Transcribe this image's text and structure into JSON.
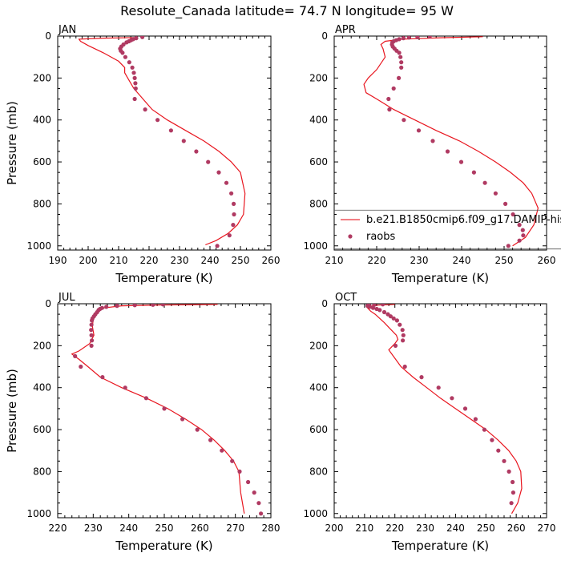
{
  "title": "Resolute_Canada  latitude= 74.7 N longitude= 95 W",
  "colors": {
    "model": "#e8161f",
    "obs": "#b03a62"
  },
  "legend": {
    "panel": 1,
    "placement": "lower-right",
    "entries": [
      "b.e21.B1850cmip6.f09_g17.DAMIP-hist-c",
      "raobs"
    ]
  },
  "chart_data": [
    {
      "type": "line",
      "title": "JAN",
      "xlabel": "Temperature (K)",
      "ylabel": "Pressure (mb)",
      "xlim": [
        190,
        260
      ],
      "ylim": [
        1020,
        0
      ],
      "xticks": [
        190,
        200,
        210,
        220,
        230,
        240,
        250,
        260
      ],
      "yticks": [
        0,
        200,
        400,
        600,
        800,
        1000
      ],
      "series": [
        {
          "name": "model",
          "kind": "line",
          "x": [
            216,
            205,
            197,
            197.5,
            200,
            205,
            210,
            212,
            212,
            213,
            215,
            218,
            221,
            226,
            232,
            238,
            243,
            247,
            250,
            251.5,
            251,
            249,
            246,
            242,
            238.5
          ],
          "y": [
            7,
            10,
            15,
            25,
            45,
            80,
            120,
            150,
            175,
            200,
            250,
            300,
            350,
            400,
            450,
            500,
            550,
            600,
            650,
            750,
            850,
            900,
            940,
            975,
            995
          ]
        },
        {
          "name": "raobs",
          "kind": "scatter",
          "x": [
            217.8,
            215.8,
            214.8,
            214.1,
            213.4,
            212.6,
            211.6,
            210.9,
            210.5,
            210.7,
            211.3,
            212.2,
            213.5,
            214.5,
            215.0,
            215.3,
            215.5,
            215.6,
            215.3,
            218.7,
            222.8,
            227.2,
            231.4,
            235.5,
            239.4,
            242.9,
            245.4,
            247.0,
            247.8,
            247.9,
            247.6,
            246.4,
            242.4
          ],
          "y": [
            5,
            10,
            15,
            20,
            25,
            30,
            40,
            50,
            60,
            70,
            80,
            100,
            125,
            150,
            175,
            200,
            225,
            250,
            300,
            350,
            400,
            450,
            500,
            550,
            600,
            650,
            700,
            750,
            800,
            850,
            900,
            950,
            1000
          ]
        }
      ]
    },
    {
      "type": "line",
      "title": "APR",
      "xlabel": "Temperature (K)",
      "ylabel": "",
      "xlim": [
        210,
        260
      ],
      "ylim": [
        1020,
        0
      ],
      "xticks": [
        210,
        220,
        230,
        240,
        250,
        260
      ],
      "yticks": [
        0,
        200,
        400,
        600,
        800,
        1000
      ],
      "series": [
        {
          "name": "b.e21.B1850cmip6.f09_g17.DAMIP-hist-c",
          "kind": "line",
          "x": [
            245,
            235,
            226,
            222,
            221,
            221.5,
            222,
            220,
            218,
            217,
            217.5,
            220,
            224,
            229,
            234,
            239.5,
            244,
            248,
            251.5,
            254.5,
            256.5,
            258,
            257,
            255,
            252
          ],
          "y": [
            3,
            8,
            15,
            25,
            40,
            60,
            100,
            160,
            200,
            230,
            270,
            300,
            350,
            400,
            450,
            500,
            550,
            600,
            650,
            700,
            750,
            820,
            900,
            960,
            1000
          ]
        },
        {
          "name": "raobs",
          "kind": "scatter",
          "x": [
            232.5,
            229.6,
            227.6,
            226.3,
            225.3,
            224.6,
            224.0,
            223.7,
            223.6,
            223.8,
            224.2,
            224.7,
            225.3,
            225.6,
            225.8,
            225.8,
            225.2,
            224.0,
            222.8,
            223.0,
            226.4,
            229.9,
            233.2,
            236.7,
            239.9,
            242.9,
            245.5,
            248.0,
            250.3,
            252.1,
            253.6,
            254.4,
            254.5,
            253.6,
            251.0
          ],
          "y": [
            1,
            5,
            7,
            10,
            15,
            20,
            25,
            30,
            40,
            50,
            60,
            70,
            80,
            100,
            125,
            150,
            200,
            250,
            300,
            350,
            400,
            450,
            500,
            550,
            600,
            650,
            700,
            750,
            800,
            850,
            900,
            925,
            950,
            975,
            1000
          ]
        }
      ]
    },
    {
      "type": "line",
      "title": "JUL",
      "xlabel": "Temperature (K)",
      "ylabel": "Pressure (mb)",
      "xlim": [
        220,
        280
      ],
      "ylim": [
        1020,
        0
      ],
      "xticks": [
        220,
        230,
        240,
        250,
        260,
        270,
        280
      ],
      "yticks": [
        0,
        200,
        400,
        600,
        800,
        1000
      ],
      "series": [
        {
          "name": "model",
          "kind": "line",
          "x": [
            265,
            248,
            238,
            233,
            231,
            230,
            229.8,
            230.2,
            229,
            226,
            224,
            226,
            228.5,
            232,
            238,
            245,
            251,
            256,
            260.5,
            264,
            267,
            269.5,
            271,
            271.5,
            272.5
          ],
          "y": [
            3,
            6,
            10,
            20,
            40,
            70,
            110,
            150,
            190,
            225,
            240,
            265,
            300,
            350,
            400,
            450,
            500,
            550,
            600,
            650,
            700,
            750,
            800,
            900,
            1000
          ]
        },
        {
          "name": "raobs",
          "kind": "scatter",
          "x": [
            249.6,
            246.8,
            241.7,
            236.7,
            233.7,
            232.5,
            231.9,
            231.5,
            231.1,
            230.6,
            230.2,
            229.8,
            229.6,
            229.5,
            229.4,
            229.5,
            229.6,
            229.5,
            224.9,
            226.5,
            232.6,
            239.0,
            244.9,
            250.0,
            255.1,
            259.3,
            263.0,
            266.2,
            269.1,
            271.2,
            273.6,
            275.3,
            276.6,
            277.2
          ],
          "y": [
            3,
            5,
            7,
            10,
            15,
            20,
            25,
            30,
            40,
            50,
            60,
            70,
            80,
            100,
            125,
            150,
            175,
            200,
            250,
            300,
            350,
            400,
            450,
            500,
            550,
            600,
            650,
            700,
            750,
            800,
            850,
            900,
            950,
            1000
          ]
        }
      ]
    },
    {
      "type": "line",
      "title": "OCT",
      "xlabel": "Temperature (K)",
      "ylabel": "",
      "xlim": [
        200,
        270
      ],
      "ylim": [
        1020,
        0
      ],
      "xticks": [
        200,
        210,
        220,
        230,
        240,
        250,
        260,
        270
      ],
      "yticks": [
        0,
        200,
        400,
        600,
        800,
        1000
      ],
      "series": [
        {
          "name": "model",
          "kind": "line",
          "x": [
            220,
            214,
            212,
            211,
            212,
            213.5,
            215,
            216.5,
            218.5,
            220.5,
            221,
            220,
            218,
            219.5,
            222,
            226,
            230.5,
            235,
            240,
            245,
            250,
            254,
            257.5,
            260,
            261.5,
            261.8,
            260.5,
            258.5
          ],
          "y": [
            3,
            7,
            12,
            20,
            35,
            50,
            70,
            90,
            120,
            150,
            170,
            190,
            220,
            250,
            300,
            350,
            400,
            450,
            500,
            550,
            600,
            650,
            700,
            750,
            800,
            880,
            950,
            1000
          ]
        },
        {
          "name": "raobs",
          "kind": "scatter",
          "x": [
            216.0,
            213.2,
            211.5,
            211.0,
            211.7,
            212.8,
            214.0,
            215.0,
            216.5,
            217.7,
            218.6,
            219.6,
            220.7,
            221.6,
            222.5,
            222.8,
            222.6,
            220.2,
            223.3,
            228.8,
            234.4,
            238.8,
            243.2,
            246.6,
            249.5,
            252.0,
            254.1,
            256.0,
            257.6,
            258.8,
            259.0,
            258.4
          ],
          "y": [
            3,
            5,
            7,
            10,
            15,
            20,
            25,
            30,
            40,
            50,
            60,
            70,
            80,
            100,
            125,
            150,
            175,
            200,
            300,
            350,
            400,
            450,
            500,
            550,
            600,
            650,
            700,
            750,
            800,
            850,
            900,
            950
          ]
        }
      ]
    }
  ]
}
